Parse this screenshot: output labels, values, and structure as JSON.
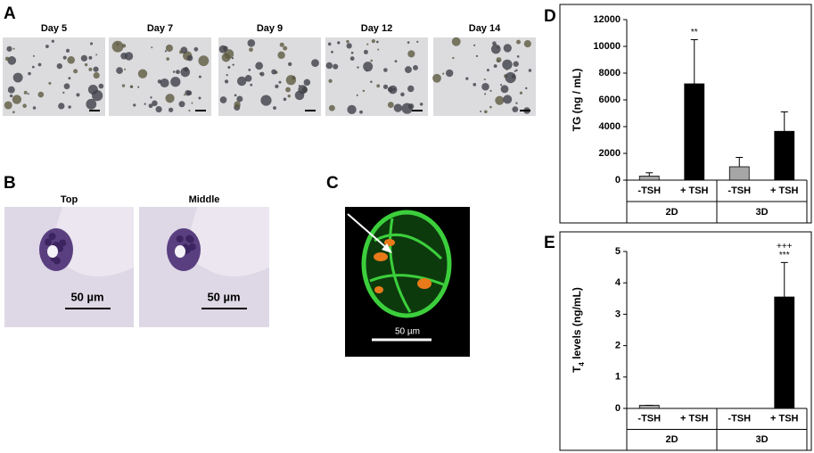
{
  "panel_labels": [
    "A",
    "B",
    "C",
    "D",
    "E"
  ],
  "panel_a": {
    "days": [
      "Day 5",
      "Day 7",
      "Day 9",
      "Day 12",
      "Day 14"
    ]
  },
  "panel_b": {
    "titles": [
      "Top",
      "Middle"
    ],
    "scale_bar": "50 µm"
  },
  "panel_c": {
    "scale_bar": "50 µm"
  },
  "chart_data": [
    {
      "type": "bar",
      "y_label": "TG (ng / mL)",
      "categories": [
        "-TSH",
        "+ TSH",
        "-TSH",
        "+ TSH"
      ],
      "groups": [
        "2D",
        "3D"
      ],
      "values": [
        300,
        7200,
        1000,
        3650
      ],
      "errors": [
        250,
        3300,
        700,
        1450
      ],
      "colors": [
        "#a6a6a6",
        "#000000",
        "#a6a6a6",
        "#000000"
      ],
      "ylim": [
        0,
        12000
      ],
      "yticks": [
        0,
        2000,
        4000,
        6000,
        8000,
        10000,
        12000
      ],
      "annotations": [
        {
          "index": 1,
          "text": "**"
        }
      ]
    },
    {
      "type": "bar",
      "y_label": {
        "main": "T",
        "sub": "4",
        "rest": " levels (ng/mL)"
      },
      "categories": [
        "-TSH",
        "+ TSH",
        "-TSH",
        "+ TSH"
      ],
      "groups": [
        "2D",
        "3D"
      ],
      "values": [
        0.1,
        0,
        0,
        3.55
      ],
      "errors": [
        0,
        0,
        0,
        1.1
      ],
      "colors": [
        "#a6a6a6",
        "#000000",
        "#a6a6a6",
        "#000000"
      ],
      "ylim": [
        0,
        5
      ],
      "yticks": [
        0,
        1,
        2,
        3,
        4,
        5
      ],
      "annotations": [
        {
          "index": 3,
          "text": "***"
        },
        {
          "index": 3,
          "text": "+++"
        }
      ]
    }
  ]
}
